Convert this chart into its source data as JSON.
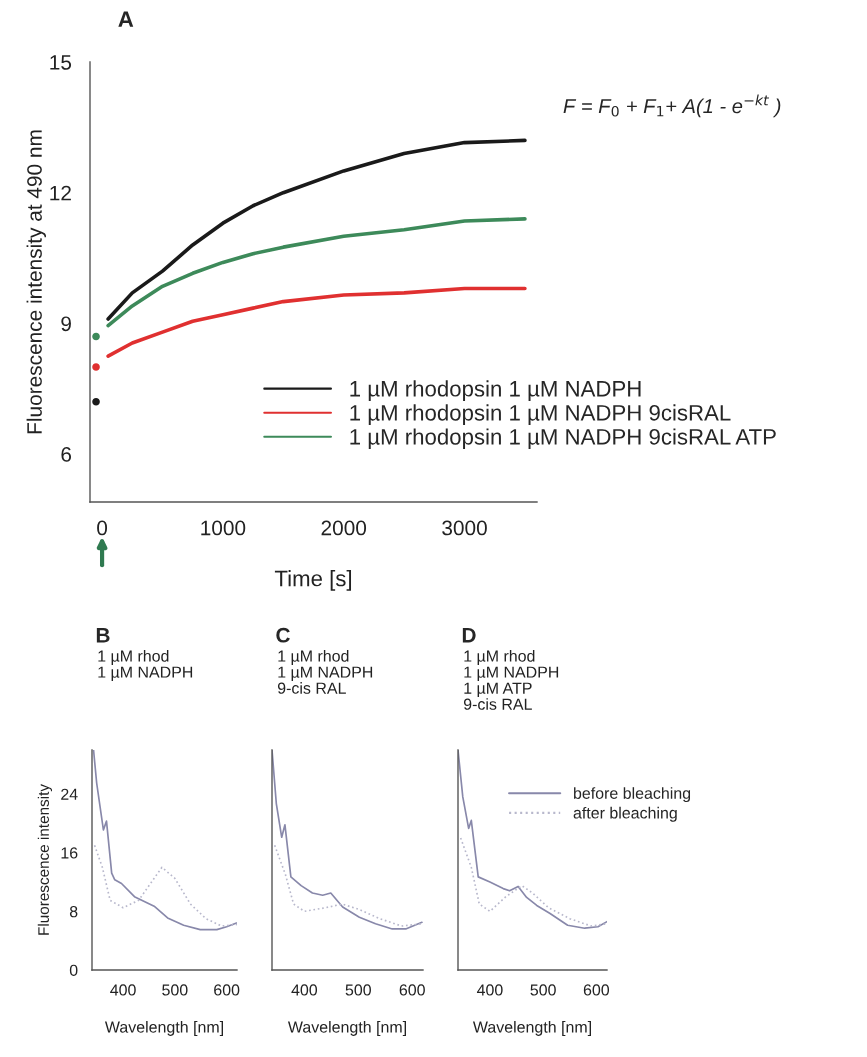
{
  "chart_data": [
    {
      "type": "line",
      "title": "A",
      "xlabel": "Time [s]",
      "ylabel": "Fluorescence intensity at 490 nm",
      "xlim": [
        -100,
        3600
      ],
      "xticks": [
        0,
        1000,
        2000,
        3000
      ],
      "ylim": [
        4.9,
        15
      ],
      "yticks": [
        6,
        9,
        12,
        15
      ],
      "legend": "bottom right",
      "annotations": [
        "F = F$_{0}$ + F$_{1}$+ A(1 - e$^{−kt}$ )"
      ],
      "series": [
        {
          "name": "1 µM rhodopsin 1 µM NADPH",
          "color": "#1a1a1a",
          "x": [
            50,
            250,
            500,
            750,
            1000,
            1250,
            1500,
            2000,
            2500,
            3000,
            3500
          ],
          "values": [
            9.1,
            9.7,
            10.2,
            10.8,
            11.3,
            11.7,
            12.0,
            12.5,
            12.9,
            13.15,
            13.2
          ]
        },
        {
          "name": "1 µM rhodopsin 1 µM NADPH 9cisRAL",
          "color": "#e03030",
          "x": [
            50,
            250,
            500,
            750,
            1000,
            1250,
            1500,
            2000,
            2500,
            3000,
            3500
          ],
          "values": [
            8.25,
            8.55,
            8.8,
            9.05,
            9.2,
            9.35,
            9.5,
            9.65,
            9.7,
            9.8,
            9.8
          ]
        },
        {
          "name": "1 µM rhodopsin 1 µM NADPH 9cisRAL ATP",
          "color": "#3d8a5a",
          "x": [
            50,
            250,
            500,
            750,
            1000,
            1250,
            1500,
            2000,
            2500,
            3000,
            3500
          ],
          "values": [
            8.95,
            9.4,
            9.85,
            10.15,
            10.4,
            10.6,
            10.75,
            11.0,
            11.15,
            11.35,
            11.4
          ]
        },
        {
          "type": "scatter",
          "color": "#1a1a1a",
          "x": [
            -50
          ],
          "values": [
            7.2
          ]
        },
        {
          "type": "scatter",
          "color": "#e03030",
          "x": [
            -50
          ],
          "values": [
            8.0
          ]
        },
        {
          "type": "scatter",
          "color": "#3d8a5a",
          "x": [
            -50
          ],
          "values": [
            8.7
          ]
        }
      ]
    },
    {
      "type": "line",
      "title": "B",
      "subtitle": "1 µM rhod\n1 µM NADPH",
      "xlabel": "Wavelength [nm]",
      "ylabel": "Fluorescence intensity",
      "xlim": [
        340,
        620
      ],
      "xticks": [
        400,
        500,
        600
      ],
      "ylim": [
        0,
        30
      ],
      "yticks": [
        0,
        8,
        16,
        24
      ],
      "series": [
        {
          "color": "#8888aa",
          "line_style": "solid",
          "x": [
            343,
            349,
            362,
            368,
            378,
            384,
            397,
            422,
            448,
            460,
            486,
            517,
            549,
            581,
            600,
            619
          ],
          "values": [
            30,
            25.5,
            19.1,
            20.3,
            13.2,
            12.3,
            11.8,
            10.0,
            9.1,
            8.7,
            7.1,
            6.1,
            5.5,
            5.5,
            5.9,
            6.4
          ]
        },
        {
          "color": "#b8b8cc",
          "line_style": "dotted",
          "x": [
            345,
            360,
            375,
            400,
            430,
            460,
            475,
            500,
            530,
            560,
            590,
            620
          ],
          "values": [
            17,
            14,
            9.5,
            8.5,
            9.5,
            12.5,
            14,
            12.5,
            9,
            7,
            6,
            6.2
          ]
        }
      ]
    },
    {
      "type": "line",
      "title": "C",
      "subtitle": "1 µM rhod\n1 µM NADPH\n9-cis RAL",
      "xlabel": "Wavelength [nm]",
      "xlim": [
        340,
        620
      ],
      "xticks": [
        400,
        500,
        600
      ],
      "ylim": [
        0,
        30
      ],
      "yticks": [
        0,
        8,
        16,
        24
      ],
      "tick_labels": "x",
      "series": [
        {
          "color": "#8888aa",
          "line_style": "solid",
          "x": [
            340,
            348,
            358,
            364,
            375,
            394,
            415,
            434,
            449,
            471,
            502,
            532,
            563,
            588,
            618
          ],
          "values": [
            30,
            22.7,
            18.1,
            19.8,
            12.7,
            11.5,
            10.5,
            10.2,
            10.5,
            8.6,
            7.2,
            6.3,
            5.6,
            5.6,
            6.5
          ]
        },
        {
          "color": "#b8b8cc",
          "line_style": "dotted",
          "x": [
            345,
            365,
            380,
            400,
            440,
            470,
            500,
            540,
            580,
            620
          ],
          "values": [
            17,
            13,
            9,
            8,
            8.5,
            9,
            8.3,
            7,
            6,
            6.3
          ]
        }
      ]
    },
    {
      "type": "line",
      "title": "D",
      "subtitle": "1 µM rhod\n1 µM NADPH\n1 µM ATP\n9-cis RAL",
      "xlabel": "Wavelength [nm]",
      "xlim": [
        340,
        620
      ],
      "xticks": [
        400,
        500,
        600
      ],
      "ylim": [
        0,
        30
      ],
      "yticks": [
        0,
        8,
        16,
        24
      ],
      "tick_labels": "x",
      "legend": "top right",
      "series": [
        {
          "name": "before bleaching",
          "color": "#8888aa",
          "line_style": "solid",
          "x": [
            340,
            349,
            360,
            365,
            378,
            400,
            425,
            437,
            453,
            469,
            488,
            513,
            546,
            578,
            603,
            620
          ],
          "values": [
            30,
            23.6,
            19.3,
            20.4,
            12.7,
            12.0,
            11.1,
            10.8,
            11.4,
            9.9,
            8.8,
            7.7,
            6.1,
            5.7,
            5.9,
            6.6
          ]
        },
        {
          "name": "after bleaching",
          "color": "#b8b8cc",
          "line_style": "dotted",
          "x": [
            345,
            365,
            380,
            400,
            430,
            460,
            480,
            510,
            550,
            590,
            620
          ],
          "values": [
            18,
            14,
            9,
            8,
            10,
            11.5,
            10.5,
            8.5,
            7,
            6,
            6.3
          ]
        }
      ]
    }
  ]
}
